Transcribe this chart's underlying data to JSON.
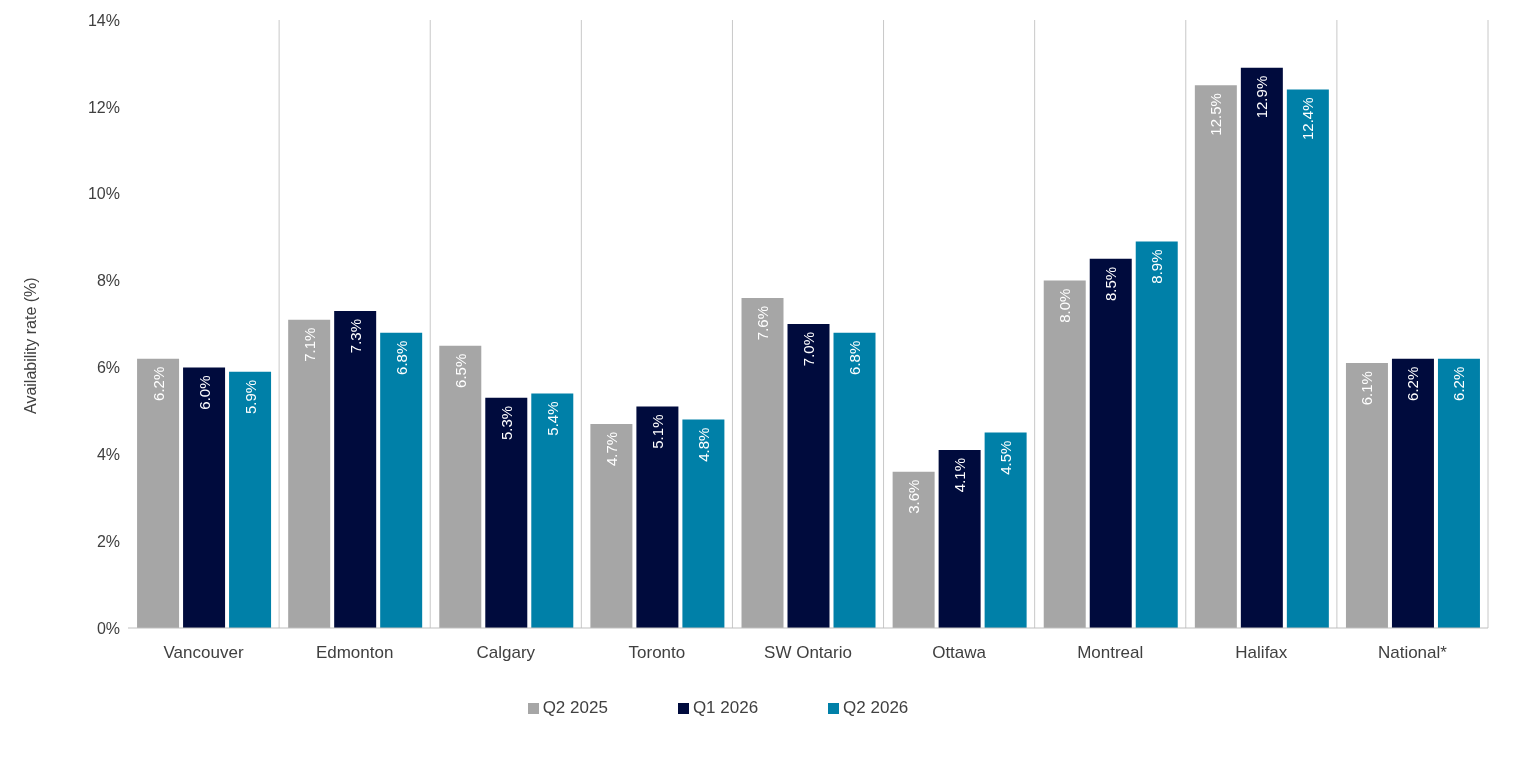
{
  "chart_data": {
    "type": "bar",
    "ylabel": "Availability rate (%)",
    "categories": [
      "Vancouver",
      "Edmonton",
      "Calgary",
      "Toronto",
      "SW Ontario",
      "Ottawa",
      "Montreal",
      "Halifax",
      "National*"
    ],
    "series": [
      {
        "name": "Q2 2025",
        "color": "#a6a6a6",
        "values": [
          6.2,
          7.1,
          6.5,
          4.7,
          7.6,
          3.6,
          8.0,
          12.5,
          6.1
        ],
        "value_labels": [
          "6.2%",
          "7.1%",
          "6.5%",
          "4.7%",
          "7.6%",
          "3.6%",
          "8.0%",
          "12.5%",
          "6.1%"
        ]
      },
      {
        "name": "Q1 2026",
        "color": "#000b3d",
        "values": [
          6.0,
          7.3,
          5.3,
          5.1,
          7.0,
          4.1,
          8.5,
          12.9,
          6.2
        ],
        "value_labels": [
          "6.0%",
          "7.3%",
          "5.3%",
          "5.1%",
          "7.0%",
          "4.1%",
          "8.5%",
          "12.9%",
          "6.2%"
        ]
      },
      {
        "name": "Q2 2026",
        "color": "#0080a8",
        "values": [
          5.9,
          6.8,
          5.4,
          4.8,
          6.8,
          4.5,
          8.9,
          12.4,
          6.2
        ],
        "value_labels": [
          "5.9%",
          "6.8%",
          "5.4%",
          "4.8%",
          "6.8%",
          "4.5%",
          "8.9%",
          "12.4%",
          "6.2%"
        ]
      }
    ],
    "ylim": [
      0,
      14
    ],
    "yticks": [
      {
        "value": 0,
        "label": "0%"
      },
      {
        "value": 2,
        "label": "2%"
      },
      {
        "value": 4,
        "label": "4%"
      },
      {
        "value": 6,
        "label": "6%"
      },
      {
        "value": 8,
        "label": "8%"
      },
      {
        "value": 10,
        "label": "10%"
      },
      {
        "value": 12,
        "label": "12%"
      },
      {
        "value": 14,
        "label": "14%"
      }
    ],
    "grid": "x",
    "legend": "bottom"
  }
}
